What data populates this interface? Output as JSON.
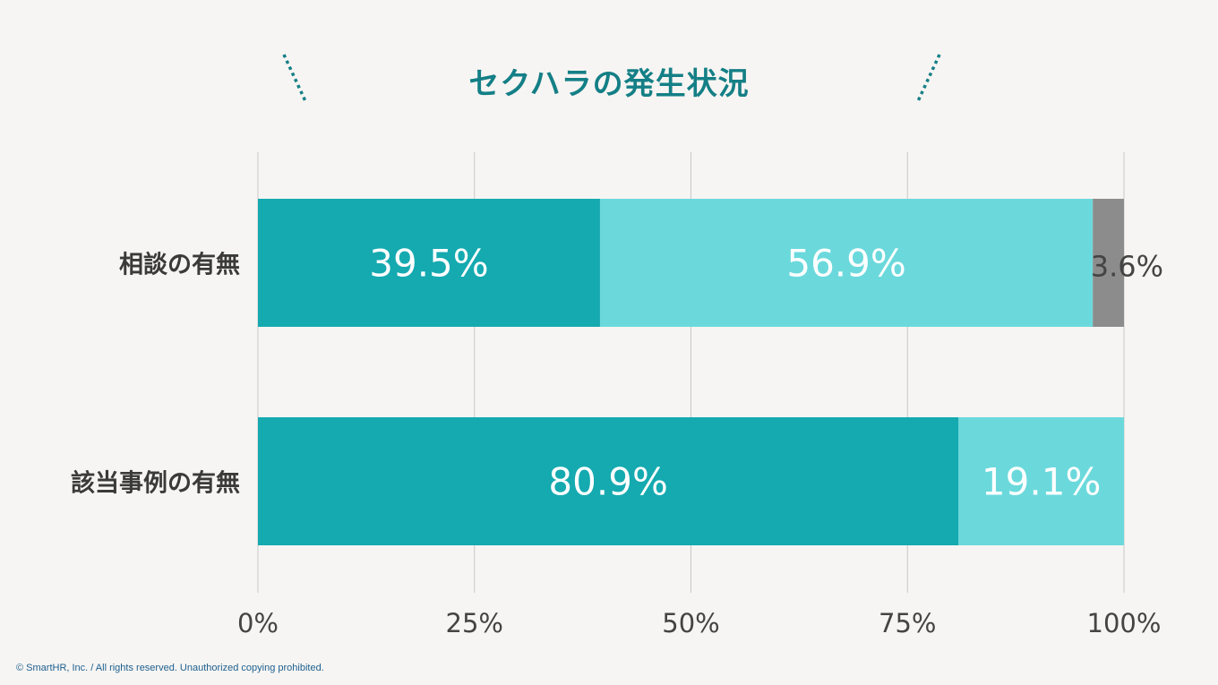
{
  "title": "セクハラの発生状況",
  "footer": "© SmartHR, Inc. / All rights reserved. Unauthorized copying prohibited.",
  "colors": {
    "background": "#f7f5f3",
    "dark_teal": "#14aab0",
    "light_teal": "#6bd9dc",
    "gray": "#8c8c8c",
    "title": "#147f86",
    "grid": "#c8c8c8",
    "category_text": "#3a3a3a",
    "tick_text": "#444444"
  },
  "chart_data": {
    "type": "bar",
    "orientation": "horizontal",
    "stacked": true,
    "percent_stacked": true,
    "title": "セクハラの発生状況",
    "categories": [
      "相談の有無",
      "該当事例の有無"
    ],
    "series": [
      {
        "color": "#14aab0",
        "values": [
          39.5,
          80.9
        ],
        "labels": [
          "39.5%",
          "80.9%"
        ]
      },
      {
        "color": "#6bd9dc",
        "values": [
          56.9,
          19.1
        ],
        "labels": [
          "56.9%",
          "19.1%"
        ]
      },
      {
        "color": "#8c8c8c",
        "values": [
          3.6,
          0
        ],
        "labels": [
          "3.6%",
          ""
        ]
      }
    ],
    "xlim": [
      0,
      100
    ],
    "xticks": [
      "0%",
      "25%",
      "50%",
      "75%",
      "100%"
    ],
    "grid": true,
    "legend": "none"
  }
}
